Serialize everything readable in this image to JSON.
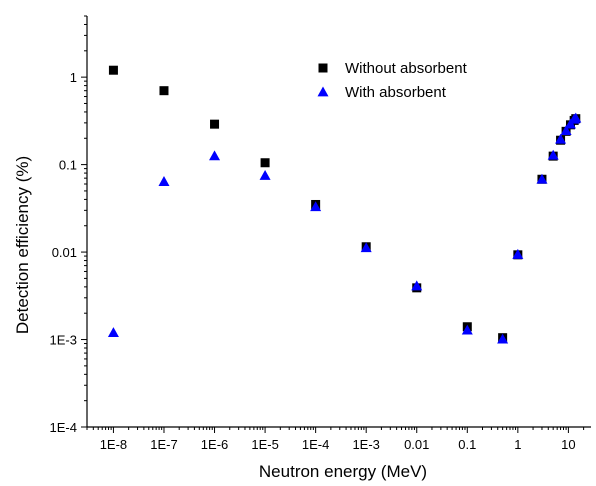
{
  "chart_data": {
    "type": "scatter",
    "title": "",
    "xlabel": "Neutron energy (MeV)",
    "ylabel": "Detection efficiency (%)",
    "x_scale": "log",
    "y_scale": "log",
    "xlim": [
      3e-09,
      28
    ],
    "ylim": [
      0.0001,
      5
    ],
    "grid": false,
    "legend_position": "top-right",
    "x_ticks": [
      {
        "value": 1e-08,
        "label": "1E-8"
      },
      {
        "value": 1e-07,
        "label": "1E-7"
      },
      {
        "value": 1e-06,
        "label": "1E-6"
      },
      {
        "value": 1e-05,
        "label": "1E-5"
      },
      {
        "value": 0.0001,
        "label": "1E-4"
      },
      {
        "value": 0.001,
        "label": "1E-3"
      },
      {
        "value": 0.01,
        "label": "0.01"
      },
      {
        "value": 0.1,
        "label": "0.1"
      },
      {
        "value": 1,
        "label": "1"
      },
      {
        "value": 10,
        "label": "10"
      }
    ],
    "y_ticks": [
      {
        "value": 0.0001,
        "label": "1E-4"
      },
      {
        "value": 0.001,
        "label": "1E-3"
      },
      {
        "value": 0.01,
        "label": "0.01"
      },
      {
        "value": 0.1,
        "label": "0.1"
      },
      {
        "value": 1,
        "label": "1"
      }
    ],
    "series": [
      {
        "name": "Without absorbent",
        "marker": "square",
        "color": "#000000",
        "x": [
          1e-08,
          1e-07,
          1e-06,
          1e-05,
          0.0001,
          0.001,
          0.01,
          0.1,
          0.5,
          1,
          3,
          5,
          7,
          9,
          11,
          13,
          14
        ],
        "y": [
          1.2,
          0.7,
          0.29,
          0.105,
          0.035,
          0.0115,
          0.0039,
          0.0014,
          0.00105,
          0.0093,
          0.068,
          0.125,
          0.19,
          0.24,
          0.285,
          0.32,
          0.335
        ]
      },
      {
        "name": "With absorbent",
        "marker": "triangle",
        "color": "#0000ff",
        "x": [
          1e-08,
          1e-07,
          1e-06,
          1e-05,
          0.0001,
          0.001,
          0.01,
          0.1,
          0.5,
          1,
          3,
          5,
          7,
          9,
          11,
          13,
          14
        ],
        "y": [
          0.0012,
          0.064,
          0.126,
          0.075,
          0.033,
          0.0112,
          0.0041,
          0.00128,
          0.00101,
          0.0094,
          0.068,
          0.128,
          0.195,
          0.245,
          0.29,
          0.33,
          0.34
        ]
      }
    ]
  }
}
